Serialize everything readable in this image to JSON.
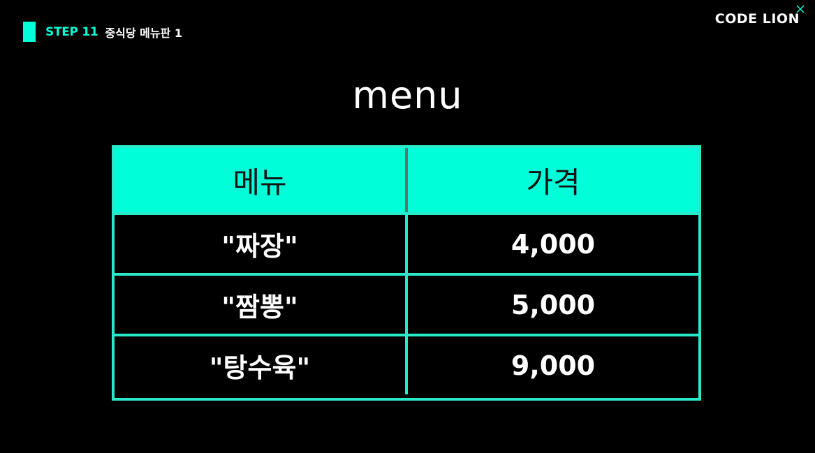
{
  "header": {
    "step_label": "STEP 11",
    "step_title": "중식당 메뉴판 1"
  },
  "logo": {
    "text": "CODE LION",
    "mark_icon": "x-mark-icon"
  },
  "heading": "menu",
  "table": {
    "columns": [
      "메뉴",
      "가격"
    ],
    "rows": [
      {
        "menu": "\"짜장\"",
        "price": "4,000"
      },
      {
        "menu": "\"짬뽕\"",
        "price": "5,000"
      },
      {
        "menu": "\"탕수육\"",
        "price": "9,000"
      }
    ]
  },
  "colors": {
    "accent": "#00ffd8",
    "border": "#28e9c9",
    "background": "#000000"
  }
}
